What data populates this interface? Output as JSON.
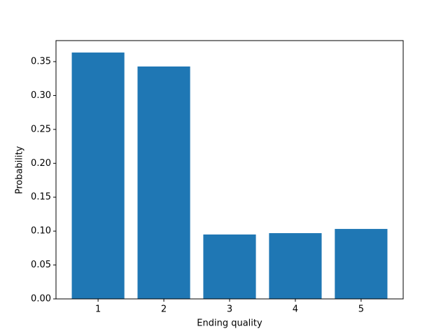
{
  "chart_data": {
    "type": "bar",
    "xlabel": "Ending quality",
    "ylabel": "Probability",
    "x": [
      1,
      2,
      3,
      4,
      5
    ],
    "values": [
      0.3634,
      0.3428,
      0.095,
      0.097,
      0.1032
    ],
    "color": "#1f77b4",
    "xlim": [
      0.36,
      5.64
    ],
    "xticks": [
      1,
      2,
      3,
      4,
      5
    ],
    "ylim": [
      0,
      0.381
    ],
    "yticks": [
      {
        "value": 0,
        "label": "0.00"
      },
      {
        "value": 0.05,
        "label": "0.05"
      },
      {
        "value": 0.1,
        "label": "0.10"
      },
      {
        "value": 0.15,
        "label": "0.15"
      },
      {
        "value": 0.2,
        "label": "0.20"
      },
      {
        "value": 0.25,
        "label": "0.25"
      },
      {
        "value": 0.3,
        "label": "0.30"
      },
      {
        "value": 0.35,
        "label": "0.35"
      }
    ],
    "grid": false
  }
}
